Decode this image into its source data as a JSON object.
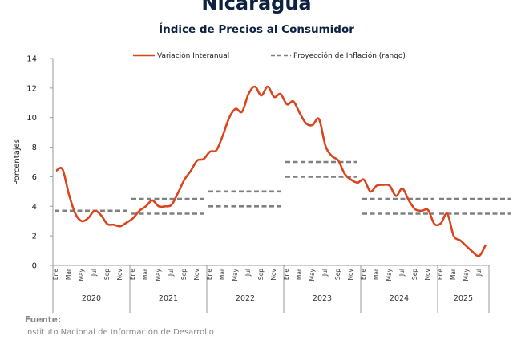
{
  "title": "Nicaragua",
  "subtitle": "Índice de Precios al Consumidor",
  "source_heading": "Fuente:",
  "source_text": "Instituto Nacional de Información de Desarrollo",
  "chart_data": {
    "type": "line",
    "ylabel": "Porcentajes",
    "ylim": [
      0,
      14
    ],
    "yticks": [
      0,
      2,
      4,
      6,
      8,
      10,
      12,
      14
    ],
    "grid": false,
    "legend_position": "top",
    "month_labels": [
      "Ene",
      "Mar",
      "May",
      "Jul",
      "Sep",
      "Nov"
    ],
    "years": [
      "2020",
      "2021",
      "2022",
      "2023",
      "2024",
      "2025"
    ],
    "series": [
      {
        "name": "Variación Interanual",
        "color": "#d9461e",
        "style": "solid",
        "start": "Ene 2020",
        "values": [
          6.4,
          6.5,
          4.8,
          3.5,
          3.0,
          3.2,
          3.7,
          3.4,
          2.8,
          2.75,
          2.65,
          2.9,
          3.2,
          3.7,
          4.0,
          4.4,
          4.0,
          4.0,
          4.1,
          4.9,
          5.8,
          6.4,
          7.1,
          7.2,
          7.7,
          7.8,
          8.8,
          10.0,
          10.6,
          10.4,
          11.6,
          12.1,
          11.5,
          12.1,
          11.4,
          11.6,
          10.9,
          11.1,
          10.3,
          9.6,
          9.5,
          9.9,
          8.1,
          7.4,
          7.1,
          6.2,
          5.8,
          5.6,
          5.8,
          5.0,
          5.4,
          5.45,
          5.4,
          4.7,
          5.2,
          4.4,
          3.8,
          3.7,
          3.75,
          2.8,
          2.85,
          3.5,
          2.0,
          1.7,
          1.3,
          0.9,
          0.65,
          1.4
        ]
      },
      {
        "name": "Proyección de Inflación (rango)",
        "color": "#808080",
        "style": "dashed",
        "ranges": [
          {
            "year": "2020",
            "low": 3.7,
            "high": 3.7
          },
          {
            "year": "2021",
            "low": 3.5,
            "high": 4.5
          },
          {
            "year": "2022",
            "low": 4.0,
            "high": 5.0
          },
          {
            "year": "2023",
            "low": 6.0,
            "high": 7.0
          },
          {
            "year": "2024",
            "low": 3.5,
            "high": 4.5
          },
          {
            "year": "2025",
            "low": 3.5,
            "high": 4.5
          }
        ]
      }
    ]
  }
}
